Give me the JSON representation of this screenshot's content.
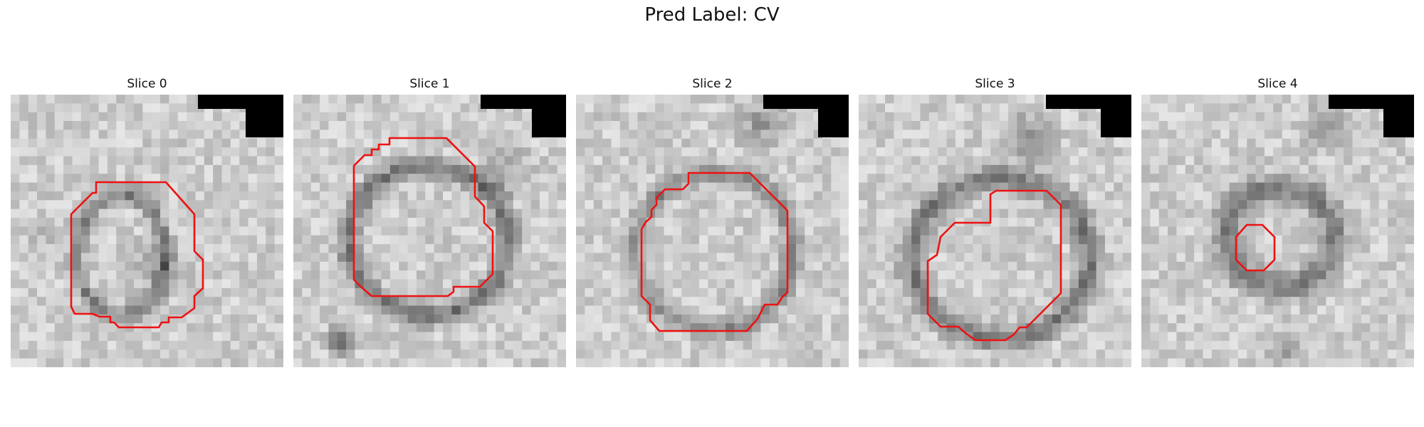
{
  "figure": {
    "title": "Pred Label: CV"
  },
  "panels": [
    {
      "label": "Slice 0"
    },
    {
      "label": "Slice 1"
    },
    {
      "label": "Slice 2"
    },
    {
      "label": "Slice 3"
    },
    {
      "label": "Slice 4"
    }
  ],
  "colors": {
    "contour": "#ee1111",
    "background": "#ffffff"
  }
}
